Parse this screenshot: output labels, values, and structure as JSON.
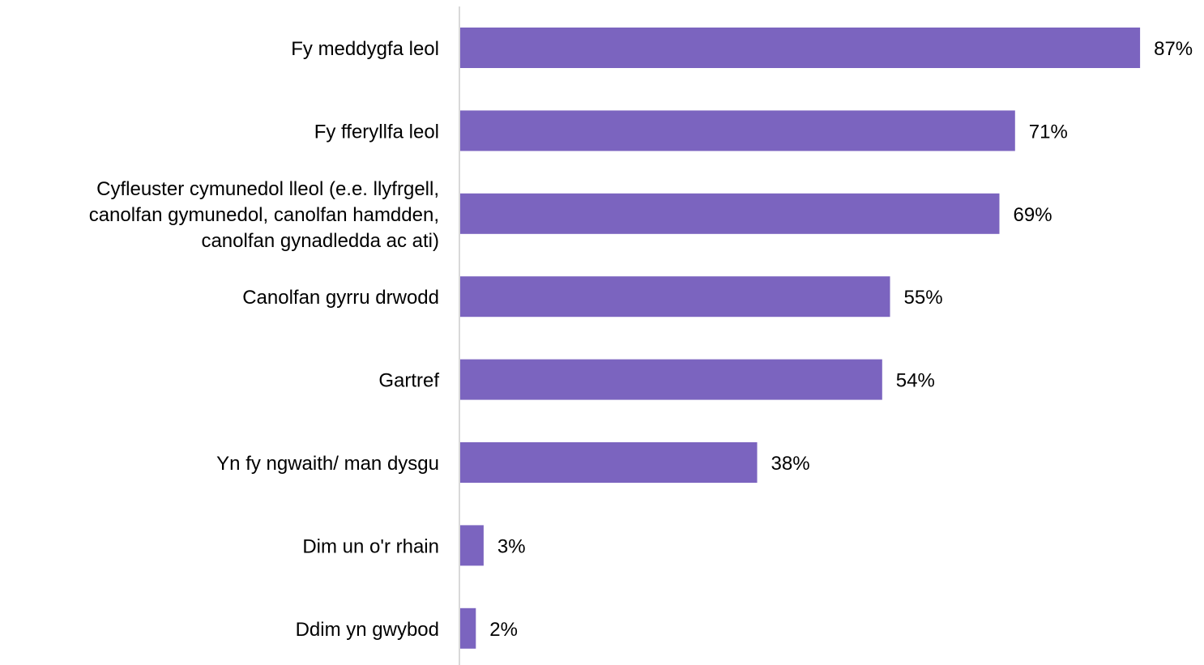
{
  "chart_data": {
    "type": "bar",
    "orientation": "horizontal",
    "categories": [
      [
        "Fy meddygfa leol"
      ],
      [
        "Fy fferyllfa leol"
      ],
      [
        "Cyfleuster cymunedol lleol (e.e. llyfrgell,",
        "canolfan gymunedol, canolfan hamdden,",
        "canolfan gynadledda ac ati)"
      ],
      [
        "Canolfan gyrru drwodd"
      ],
      [
        "Gartref"
      ],
      [
        "Yn fy ngwaith/ man dysgu"
      ],
      [
        "Dim un o'r rhain"
      ],
      [
        "Ddim yn gwybod"
      ]
    ],
    "values": [
      87,
      71,
      69,
      55,
      54,
      38,
      3,
      2
    ],
    "value_labels": [
      "87%",
      "71%",
      "69%",
      "55%",
      "54%",
      "38%",
      "3%",
      "2%"
    ],
    "value_unit": "%",
    "title": "",
    "xlabel": "",
    "ylabel": "",
    "xlim": [
      0,
      100
    ],
    "grid": false,
    "legend": "none",
    "colors": {
      "bar": "#7B64BF",
      "axis": "#D9D9D9",
      "text": "#000000"
    }
  }
}
